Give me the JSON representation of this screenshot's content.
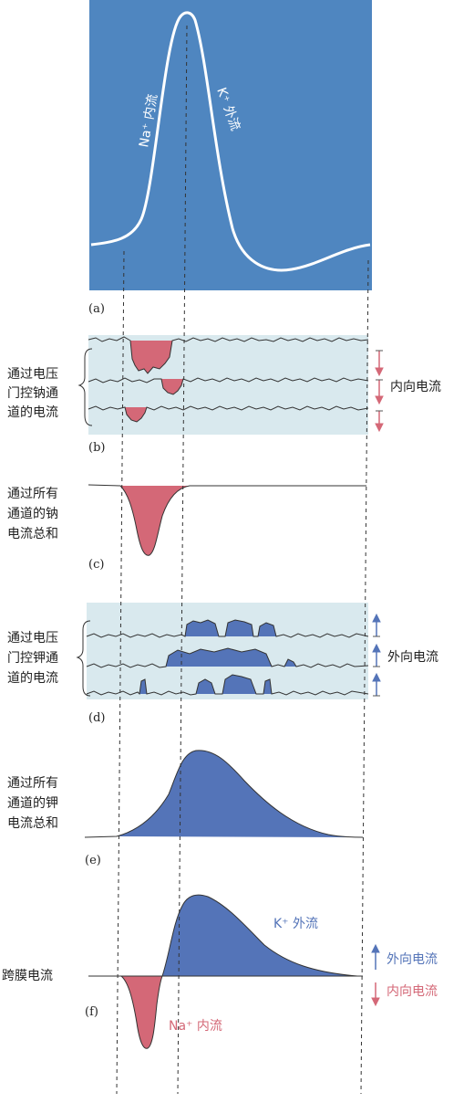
{
  "panels": {
    "a": {
      "letter": "(a)",
      "na_label": "Na⁺ 内流",
      "k_label": "K⁺ 外流",
      "background_color": "#4f86c0"
    },
    "b": {
      "letter": "(b)",
      "side_label": [
        "通过电压",
        "门控钠通",
        "道的电流"
      ],
      "direction_label": "内向电流",
      "fill_color": "#d46877"
    },
    "c": {
      "letter": "(c)",
      "side_label": [
        "通过所有",
        "通道的钠",
        "电流总和"
      ]
    },
    "d": {
      "letter": "(d)",
      "side_label": [
        "通过电压",
        "门控钾通",
        "道的电流"
      ],
      "direction_label": "外向电流",
      "fill_color": "#5474b8"
    },
    "e": {
      "letter": "(e)",
      "side_label": [
        "通过所有",
        "通道的钾",
        "电流总和"
      ]
    },
    "f": {
      "letter": "(f)",
      "side_label": "跨膜电流",
      "k_label": "K⁺ 外流",
      "na_label": "Na⁺ 内流",
      "outward_label": "外向电流",
      "inward_label": "内向电流"
    }
  },
  "colors": {
    "sodium": "#d46877",
    "potassium": "#5474b8",
    "panel_a_bg": "#4f86c0",
    "trace_bg": "#d9e9ee"
  }
}
